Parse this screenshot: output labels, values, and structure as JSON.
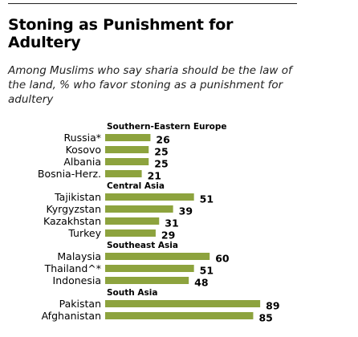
{
  "title": "Stoning as Punishment for Adultery",
  "subtitle": "Among Muslims who say sharia should be the law of the land, % who favor stoning as a punishment for adultery",
  "chart_data": {
    "type": "bar",
    "orientation": "horizontal",
    "title": "Stoning as Punishment for Adultery",
    "subtitle": "Among Muslims who say sharia should be the law of the land, % who favor stoning as a punishment for adultery",
    "colors": {
      "bar": "#8da33e"
    },
    "groups": [
      {
        "name": "Southern-Eastern  Europe",
        "categories": [
          "Russia*",
          "Kosovo",
          "Albania",
          "Bosnia-Herz."
        ],
        "values": [
          26,
          25,
          25,
          21
        ]
      },
      {
        "name": "Central Asia",
        "categories": [
          "Tajikistan",
          "Kyrgyzstan",
          "Kazakhstan",
          "Turkey"
        ],
        "values": [
          51,
          39,
          31,
          29
        ]
      },
      {
        "name": "Southeast Asia",
        "categories": [
          "Malaysia",
          "Thailand^*",
          "Indonesia"
        ],
        "values": [
          60,
          51,
          48
        ]
      },
      {
        "name": "South Asia",
        "categories": [
          "Pakistan",
          "Afghanistan"
        ],
        "values": [
          89,
          85
        ]
      }
    ]
  }
}
